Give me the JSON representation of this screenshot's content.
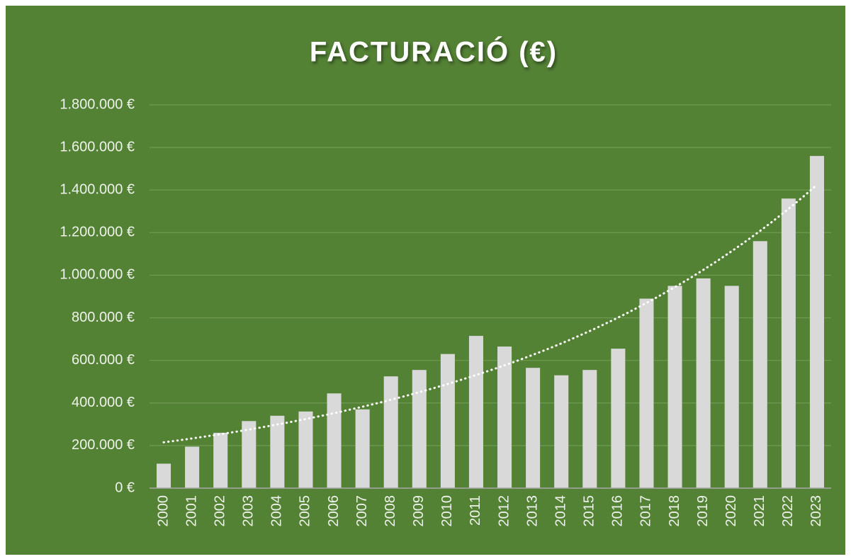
{
  "chart_data": {
    "type": "bar",
    "title": "FACTURACIÓ (€)",
    "categories": [
      "2000",
      "2001",
      "2002",
      "2003",
      "2004",
      "2005",
      "2006",
      "2007",
      "2008",
      "2009",
      "2010",
      "2011",
      "2012",
      "2013",
      "2014",
      "2015",
      "2016",
      "2017",
      "2018",
      "2019",
      "2020",
      "2021",
      "2022",
      "2023"
    ],
    "values": [
      115000,
      195000,
      260000,
      315000,
      340000,
      360000,
      445000,
      370000,
      525000,
      555000,
      630000,
      715000,
      665000,
      565000,
      530000,
      555000,
      655000,
      890000,
      950000,
      985000,
      950000,
      1160000,
      1360000,
      1560000
    ],
    "color": "#d9d9d9",
    "ylim": [
      0,
      1800000
    ],
    "yticks": [
      {
        "value": 0,
        "label": "0 €"
      },
      {
        "value": 200000,
        "label": "200.000 €"
      },
      {
        "value": 400000,
        "label": "400.000 €"
      },
      {
        "value": 600000,
        "label": "600.000 €"
      },
      {
        "value": 800000,
        "label": "800.000 €"
      },
      {
        "value": 1000000,
        "label": "1.000.000 €"
      },
      {
        "value": 1200000,
        "label": "1.200.000 €"
      },
      {
        "value": 1400000,
        "label": "1.400.000 €"
      },
      {
        "value": 1600000,
        "label": "1.600.000 €"
      },
      {
        "value": 1800000,
        "label": "1.800.000 €"
      }
    ],
    "grid": true,
    "trendline": "exponential"
  }
}
